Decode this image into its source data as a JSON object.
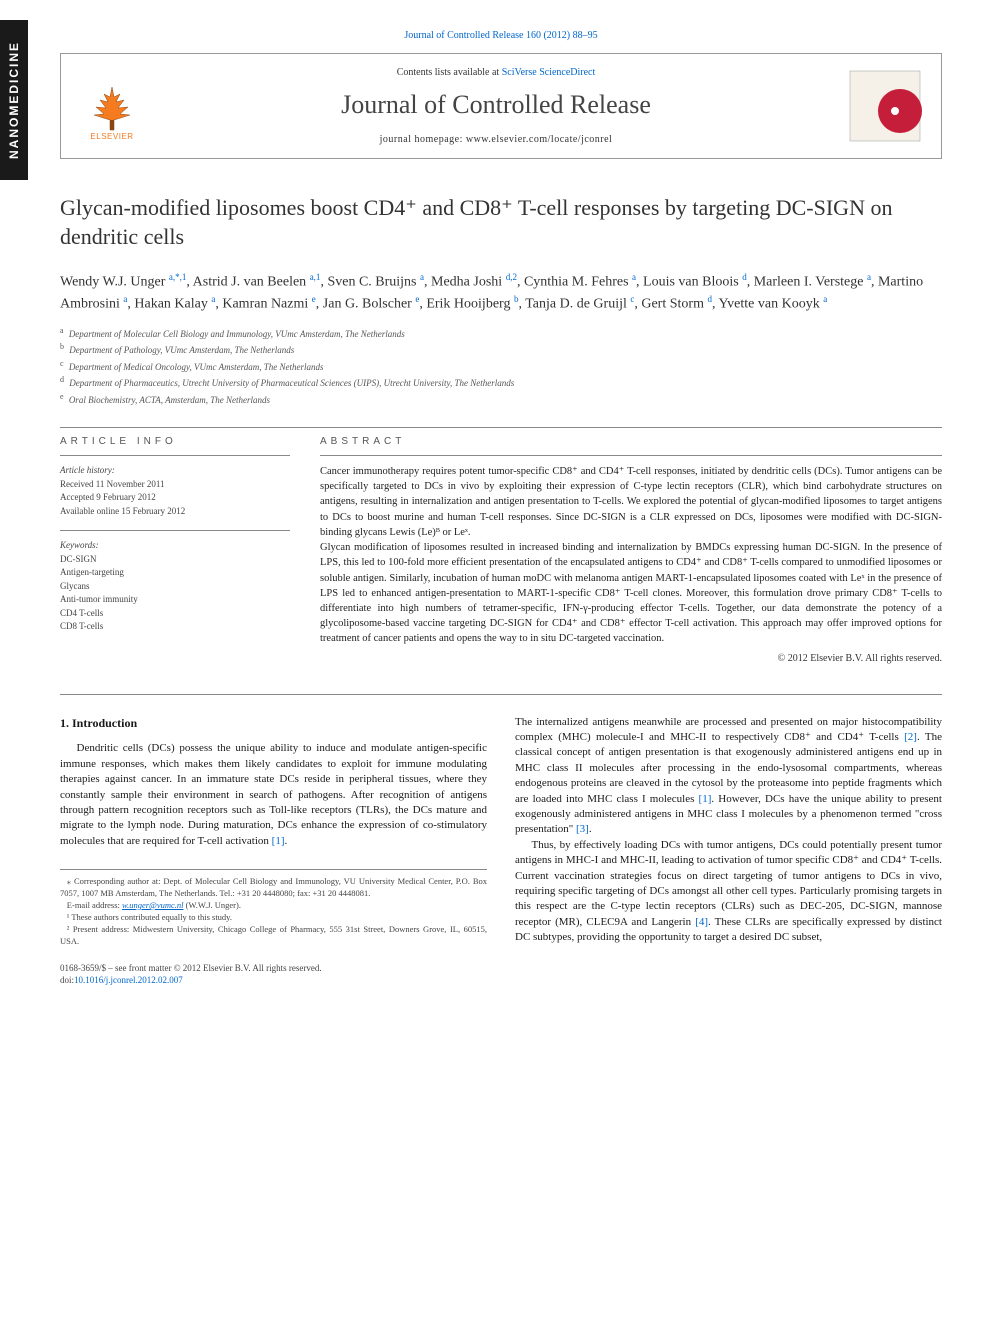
{
  "side_tab": "NANOMEDICINE",
  "header": {
    "journal_ref": "Journal of Controlled Release 160 (2012) 88–95",
    "contents_prefix": "Contents lists available at ",
    "contents_link": "SciVerse ScienceDirect",
    "journal_title": "Journal of Controlled Release",
    "homepage_prefix": "journal homepage: ",
    "homepage_url": "www.elsevier.com/locate/jconrel",
    "elsevier_label": "ELSEVIER"
  },
  "article": {
    "title": "Glycan-modified liposomes boost CD4⁺ and CD8⁺ T-cell responses by targeting DC-SIGN on dendritic cells",
    "authors_html": "Wendy W.J. Unger <sup class='author-link'>a,*,1</sup>, Astrid J. van Beelen <sup class='author-link'>a,1</sup>, Sven C. Bruijns <sup class='author-link'>a</sup>, Medha Joshi <sup class='author-link'>d,2</sup>, Cynthia M. Fehres <sup class='author-link'>a</sup>, Louis van Bloois <sup class='author-link'>d</sup>, Marleen I. Verstege <sup class='author-link'>a</sup>, Martino Ambrosini <sup class='author-link'>a</sup>, Hakan Kalay <sup class='author-link'>a</sup>, Kamran Nazmi <sup class='author-link'>e</sup>, Jan G. Bolscher <sup class='author-link'>e</sup>, Erik Hooijberg <sup class='author-link'>b</sup>, Tanja D. de Gruijl <sup class='author-link'>c</sup>, Gert Storm <sup class='author-link'>d</sup>, Yvette van Kooyk <sup class='author-link'>a</sup>",
    "affiliations": [
      {
        "sup": "a",
        "text": "Department of Molecular Cell Biology and Immunology, VUmc Amsterdam, The Netherlands"
      },
      {
        "sup": "b",
        "text": "Department of Pathology, VUmc Amsterdam, The Netherlands"
      },
      {
        "sup": "c",
        "text": "Department of Medical Oncology, VUmc Amsterdam, The Netherlands"
      },
      {
        "sup": "d",
        "text": "Department of Pharmaceutics, Utrecht University of Pharmaceutical Sciences (UIPS), Utrecht University, The Netherlands"
      },
      {
        "sup": "e",
        "text": "Oral Biochemistry, ACTA, Amsterdam, The Netherlands"
      }
    ]
  },
  "meta": {
    "info_heading": "ARTICLE INFO",
    "abstract_heading": "ABSTRACT",
    "history_label": "Article history:",
    "history": [
      "Received 11 November 2011",
      "Accepted 9 February 2012",
      "Available online 15 February 2012"
    ],
    "keywords_label": "Keywords:",
    "keywords": [
      "DC-SIGN",
      "Antigen-targeting",
      "Glycans",
      "Anti-tumor immunity",
      "CD4 T-cells",
      "CD8 T-cells"
    ]
  },
  "abstract": {
    "p1": "Cancer immunotherapy requires potent tumor-specific CD8⁺ and CD4⁺ T-cell responses, initiated by dendritic cells (DCs). Tumor antigens can be specifically targeted to DCs in vivo by exploiting their expression of C-type lectin receptors (CLR), which bind carbohydrate structures on antigens, resulting in internalization and antigen presentation to T-cells. We explored the potential of glycan-modified liposomes to target antigens to DCs to boost murine and human T-cell responses. Since DC-SIGN is a CLR expressed on DCs, liposomes were modified with DC-SIGN-binding glycans Lewis (Le)ᴮ or Leˣ.",
    "p2": "Glycan modification of liposomes resulted in increased binding and internalization by BMDCs expressing human DC-SIGN. In the presence of LPS, this led to 100-fold more efficient presentation of the encapsulated antigens to CD4⁺ and CD8⁺ T-cells compared to unmodified liposomes or soluble antigen. Similarly, incubation of human moDC with melanoma antigen MART-1-encapsulated liposomes coated with Leˣ in the presence of LPS led to enhanced antigen-presentation to MART-1-specific CD8⁺ T-cell clones. Moreover, this formulation drove primary CD8⁺ T-cells to differentiate into high numbers of tetramer-specific, IFN-γ-producing effector T-cells. Together, our data demonstrate the potency of a glycoliposome-based vaccine targeting DC-SIGN for CD4⁺ and CD8⁺ effector T-cell activation. This approach may offer improved options for treatment of cancer patients and opens the way to in situ DC-targeted vaccination.",
    "copyright": "© 2012 Elsevier B.V. All rights reserved."
  },
  "body": {
    "intro_heading": "1. Introduction",
    "col1_p1": "Dendritic cells (DCs) possess the unique ability to induce and modulate antigen-specific immune responses, which makes them likely candidates to exploit for immune modulating therapies against cancer. In an immature state DCs reside in peripheral tissues, where they constantly sample their environment in search of pathogens. After recognition of antigens through pattern recognition receptors such as Toll-like receptors (TLRs), the DCs mature and migrate to the lymph node. During maturation, DCs enhance the expression of co-stimulatory molecules that are required for T-cell activation ",
    "col1_cite1": "[1]",
    "col1_p1_end": ".",
    "col2_p1": "The internalized antigens meanwhile are processed and presented on major histocompatibility complex (MHC) molecule-I and MHC-II to respectively CD8⁺ and CD4⁺ T-cells ",
    "col2_cite2": "[2]",
    "col2_p1_mid": ". The classical concept of antigen presentation is that exogenously administered antigens end up in MHC class II molecules after processing in the endo-lysosomal compartments, whereas endogenous proteins are cleaved in the cytosol by the proteasome into peptide fragments which are loaded into MHC class I molecules ",
    "col2_cite1": "[1]",
    "col2_p1_mid2": ". However, DCs have the unique ability to present exogenously administered antigens in MHC class I molecules by a phenomenon termed \"cross presentation\" ",
    "col2_cite3": "[3]",
    "col2_p1_end": ".",
    "col2_p2": "Thus, by effectively loading DCs with tumor antigens, DCs could potentially present tumor antigens in MHC-I and MHC-II, leading to activation of tumor specific CD8⁺ and CD4⁺ T-cells. Current vaccination strategies focus on direct targeting of tumor antigens to DCs in vivo, requiring specific targeting of DCs amongst all other cell types. Particularly promising targets in this respect are the C-type lectin receptors (CLRs) such as DEC-205, DC-SIGN, mannose receptor (MR), CLEC9A and Langerin ",
    "col2_cite4": "[4]",
    "col2_p2_end": ". These CLRs are specifically expressed by distinct DC subtypes, providing the opportunity to target a desired DC subset,"
  },
  "footnotes": {
    "corr": "⁎ Corresponding author at: Dept. of Molecular Cell Biology and Immunology, VU University Medical Center, P.O. Box 7057, 1007 MB Amsterdam, The Netherlands. Tel.: +31 20 4448080; fax: +31 20 4448081.",
    "email_label": "E-mail address: ",
    "email": "w.unger@vumc.nl",
    "email_suffix": " (W.W.J. Unger).",
    "note1": "¹ These authors contributed equally to this study.",
    "note2": "² Present address: Midwestern University, Chicago College of Pharmacy, 555 31st Street, Downers Grove, IL, 60515, USA."
  },
  "footer": {
    "line1": "0168-3659/$ – see front matter © 2012 Elsevier B.V. All rights reserved.",
    "doi_prefix": "doi:",
    "doi": "10.1016/j.jconrel.2012.02.007"
  },
  "colors": {
    "link": "#0066cc",
    "elsevier_orange": "#f47b20",
    "jcr_red": "#c41e3a",
    "jcr_dark": "#2a2a2a"
  }
}
